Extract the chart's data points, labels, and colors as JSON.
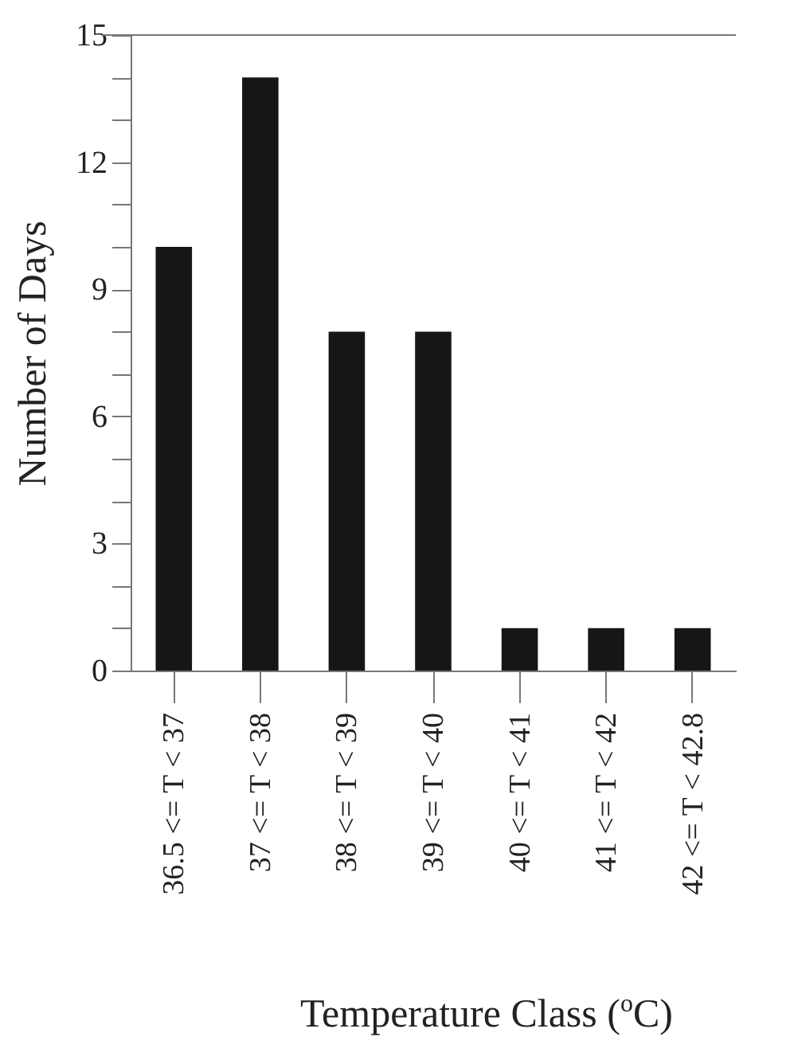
{
  "chart_data": {
    "type": "bar",
    "xlabel": "Temperature Class ($^{o}$C)",
    "ylabel": "Number of Days",
    "categories": [
      "36.5 <= T < 37",
      "37 <= T < 38",
      "38 <= T < 39",
      "39 <= T < 40",
      "40 <= T < 41",
      "41 <= T < 42",
      "42 <= T < 42.8"
    ],
    "values": [
      10,
      14,
      8,
      8,
      1,
      1,
      1
    ],
    "color": "#161616",
    "ylim": [
      0,
      15
    ],
    "yticks": [
      0,
      {
        "value": 1,
        "label": null
      },
      {
        "value": 2,
        "label": null
      },
      3,
      {
        "value": 4,
        "label": null
      },
      {
        "value": 5,
        "label": null
      },
      6,
      {
        "value": 7,
        "label": null
      },
      {
        "value": 8,
        "label": null
      },
      9,
      {
        "value": 10,
        "label": null
      },
      {
        "value": 11,
        "label": null
      },
      12,
      {
        "value": 13,
        "label": null
      },
      {
        "value": 14,
        "label": null
      },
      15
    ],
    "grid": false
  }
}
